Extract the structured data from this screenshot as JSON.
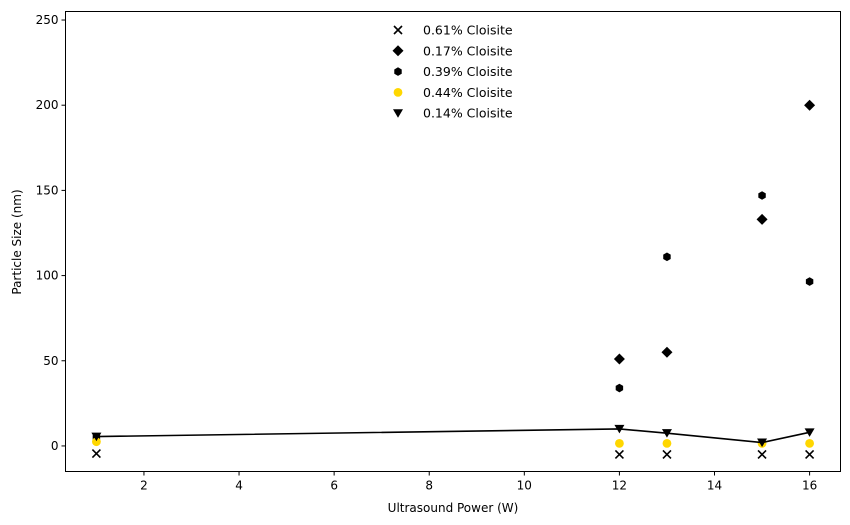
{
  "chart_data": {
    "type": "scatter",
    "xlabel": "Ultrasound Power (W)",
    "ylabel": "Particle Size (nm)",
    "xlim": [
      0.35,
      16.65
    ],
    "ylim": [
      -15,
      255
    ],
    "xticks": [
      2,
      4,
      6,
      8,
      10,
      12,
      14,
      16
    ],
    "yticks": [
      0,
      50,
      100,
      150,
      200,
      250
    ],
    "grid": false,
    "legend_position": "top-center",
    "series": [
      {
        "name": "0.61% Cloisite",
        "marker": "x",
        "color": "#000000",
        "points": [
          [
            1,
            -4.5
          ],
          [
            12,
            -5
          ],
          [
            13,
            -5
          ],
          [
            15,
            -5
          ],
          [
            16,
            -5
          ]
        ]
      },
      {
        "name": "0.17% Cloisite",
        "marker": "diamond",
        "color": "#000000",
        "points": [
          [
            12,
            51
          ],
          [
            13,
            55
          ],
          [
            15,
            133
          ],
          [
            16,
            200
          ]
        ]
      },
      {
        "name": "0.39% Cloisite",
        "marker": "hexagon",
        "color": "#000000",
        "points": [
          [
            1,
            5
          ],
          [
            12,
            34
          ],
          [
            13,
            111
          ],
          [
            15,
            147
          ],
          [
            16,
            96.5
          ]
        ]
      },
      {
        "name": "0.44% Cloisite",
        "marker": "circle",
        "color": "#FFD700",
        "points": [
          [
            1,
            2.5
          ],
          [
            12,
            1.5
          ],
          [
            13,
            1.5
          ],
          [
            15,
            1.5
          ],
          [
            16,
            1.5
          ]
        ]
      },
      {
        "name": "0.14% Cloisite",
        "marker": "triangle-down",
        "color": "#000000",
        "line": true,
        "points": [
          [
            1,
            5.5
          ],
          [
            12,
            10
          ],
          [
            13,
            7.5
          ],
          [
            15,
            2
          ],
          [
            16,
            8
          ]
        ]
      }
    ]
  }
}
